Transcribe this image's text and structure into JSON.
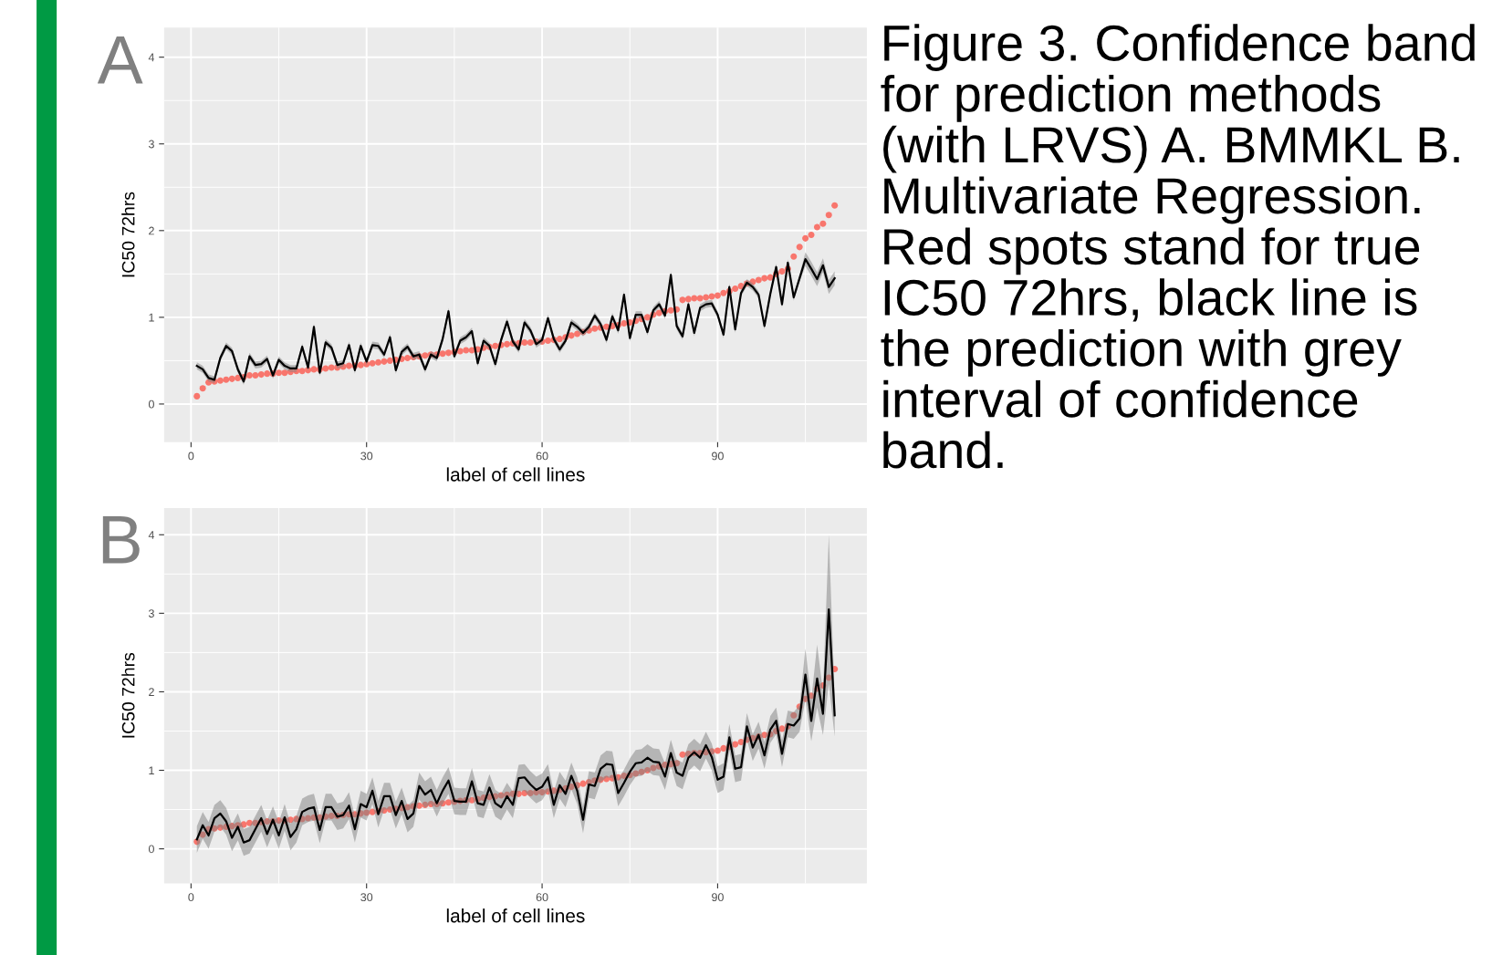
{
  "chart_data": [
    {
      "type": "line",
      "xlabel": "label of cell lines",
      "ylabel": "IC50 72hrs",
      "annotations": [
        "A",
        "Figure 3. Confidence band for prediction methods (with LRVS) A. BMMKL B. Multivariate Regression. Red spots stand for true IC50 72hrs, black line is the prediction with grey interval of confidence band."
      ],
      "xlim": [
        -4.6,
        115.5
      ],
      "ylim": [
        -0.44,
        4.34
      ],
      "xticks": [
        0,
        30,
        60,
        90
      ],
      "yticks": [
        0,
        1,
        2,
        3,
        4
      ],
      "grid": true,
      "x": [
        1,
        2,
        3,
        4,
        5,
        6,
        7,
        8,
        9,
        10,
        11,
        12,
        13,
        14,
        15,
        16,
        17,
        18,
        19,
        20,
        21,
        22,
        23,
        24,
        25,
        26,
        27,
        28,
        29,
        30,
        31,
        32,
        33,
        34,
        35,
        36,
        37,
        38,
        39,
        40,
        41,
        42,
        43,
        44,
        45,
        46,
        47,
        48,
        49,
        50,
        51,
        52,
        53,
        54,
        55,
        56,
        57,
        58,
        59,
        60,
        61,
        62,
        63,
        64,
        65,
        66,
        67,
        68,
        69,
        70,
        71,
        72,
        73,
        74,
        75,
        76,
        77,
        78,
        79,
        80,
        81,
        82,
        83,
        84,
        85,
        86,
        87,
        88,
        89,
        90,
        91,
        92,
        93,
        94,
        95,
        96,
        97,
        98,
        99,
        100,
        101,
        102,
        103,
        104,
        105,
        106,
        107,
        108,
        109,
        110
      ],
      "series": [
        {
          "type": "scatter",
          "marker": "circle",
          "color": "#f8766d",
          "values": [
            0.09,
            0.18,
            0.25,
            0.26,
            0.27,
            0.28,
            0.29,
            0.3,
            0.31,
            0.33,
            0.33,
            0.34,
            0.35,
            0.35,
            0.36,
            0.36,
            0.37,
            0.38,
            0.38,
            0.39,
            0.4,
            0.4,
            0.41,
            0.42,
            0.42,
            0.43,
            0.44,
            0.44,
            0.45,
            0.46,
            0.47,
            0.48,
            0.49,
            0.5,
            0.51,
            0.52,
            0.53,
            0.54,
            0.55,
            0.56,
            0.57,
            0.57,
            0.58,
            0.59,
            0.6,
            0.61,
            0.62,
            0.62,
            0.63,
            0.65,
            0.66,
            0.67,
            0.68,
            0.69,
            0.7,
            0.7,
            0.71,
            0.71,
            0.72,
            0.72,
            0.73,
            0.74,
            0.75,
            0.77,
            0.79,
            0.81,
            0.83,
            0.85,
            0.87,
            0.88,
            0.89,
            0.9,
            0.91,
            0.93,
            0.94,
            0.96,
            0.98,
            1.0,
            1.03,
            1.05,
            1.07,
            1.08,
            1.09,
            1.2,
            1.21,
            1.22,
            1.22,
            1.23,
            1.24,
            1.25,
            1.28,
            1.3,
            1.33,
            1.36,
            1.39,
            1.41,
            1.43,
            1.45,
            1.46,
            1.5,
            1.53,
            1.56,
            1.7,
            1.81,
            1.91,
            1.95,
            2.04,
            2.08,
            2.18,
            2.29
          ]
        },
        {
          "color": "#000000",
          "line_style": "solid",
          "values": [
            0.44,
            0.4,
            0.3,
            0.28,
            0.53,
            0.67,
            0.61,
            0.4,
            0.26,
            0.55,
            0.45,
            0.46,
            0.52,
            0.33,
            0.51,
            0.44,
            0.41,
            0.41,
            0.66,
            0.42,
            0.89,
            0.36,
            0.71,
            0.65,
            0.45,
            0.47,
            0.68,
            0.39,
            0.67,
            0.49,
            0.68,
            0.67,
            0.57,
            0.77,
            0.39,
            0.6,
            0.66,
            0.55,
            0.57,
            0.4,
            0.57,
            0.53,
            0.75,
            1.07,
            0.55,
            0.73,
            0.77,
            0.84,
            0.47,
            0.73,
            0.67,
            0.46,
            0.74,
            0.95,
            0.72,
            0.63,
            0.94,
            0.85,
            0.69,
            0.74,
            0.99,
            0.75,
            0.63,
            0.73,
            0.94,
            0.89,
            0.82,
            0.89,
            1.02,
            0.92,
            0.74,
            1.01,
            0.85,
            1.26,
            0.76,
            1.03,
            1.03,
            0.83,
            1.08,
            1.15,
            1.02,
            1.49,
            0.9,
            0.78,
            1.15,
            0.82,
            1.11,
            1.15,
            1.16,
            1.03,
            0.8,
            1.35,
            0.86,
            1.28,
            1.4,
            1.35,
            1.26,
            0.9,
            1.27,
            1.58,
            1.15,
            1.63,
            1.23,
            1.45,
            1.67,
            1.56,
            1.44,
            1.6,
            1.35,
            1.45
          ],
          "lower": [
            0.4,
            0.36,
            0.26,
            0.24,
            0.49,
            0.63,
            0.57,
            0.36,
            0.22,
            0.51,
            0.41,
            0.42,
            0.48,
            0.29,
            0.47,
            0.4,
            0.37,
            0.37,
            0.62,
            0.38,
            0.85,
            0.32,
            0.67,
            0.61,
            0.41,
            0.43,
            0.64,
            0.35,
            0.63,
            0.45,
            0.64,
            0.63,
            0.53,
            0.73,
            0.35,
            0.56,
            0.62,
            0.51,
            0.53,
            0.36,
            0.53,
            0.49,
            0.71,
            1.03,
            0.51,
            0.69,
            0.73,
            0.8,
            0.43,
            0.69,
            0.63,
            0.42,
            0.7,
            0.91,
            0.68,
            0.59,
            0.9,
            0.81,
            0.65,
            0.7,
            0.95,
            0.71,
            0.59,
            0.69,
            0.9,
            0.85,
            0.78,
            0.85,
            0.98,
            0.88,
            0.7,
            0.97,
            0.81,
            1.22,
            0.72,
            0.99,
            0.99,
            0.79,
            1.04,
            1.11,
            0.98,
            1.45,
            0.86,
            0.74,
            1.11,
            0.78,
            1.07,
            1.11,
            1.12,
            0.99,
            0.76,
            1.31,
            0.82,
            1.24,
            1.36,
            1.31,
            1.22,
            0.86,
            1.23,
            1.54,
            1.11,
            1.59,
            1.19,
            1.41,
            1.59,
            1.48,
            1.36,
            1.52,
            1.27,
            1.37
          ],
          "upper": [
            0.48,
            0.44,
            0.34,
            0.32,
            0.57,
            0.71,
            0.65,
            0.44,
            0.3,
            0.59,
            0.49,
            0.5,
            0.56,
            0.37,
            0.55,
            0.48,
            0.45,
            0.45,
            0.7,
            0.46,
            0.93,
            0.4,
            0.75,
            0.69,
            0.49,
            0.51,
            0.72,
            0.43,
            0.71,
            0.53,
            0.72,
            0.71,
            0.61,
            0.81,
            0.43,
            0.64,
            0.7,
            0.59,
            0.61,
            0.44,
            0.61,
            0.57,
            0.79,
            1.11,
            0.59,
            0.77,
            0.81,
            0.88,
            0.51,
            0.77,
            0.71,
            0.5,
            0.78,
            0.99,
            0.76,
            0.67,
            0.98,
            0.89,
            0.73,
            0.78,
            1.03,
            0.79,
            0.67,
            0.77,
            0.98,
            0.93,
            0.86,
            0.93,
            1.06,
            0.96,
            0.78,
            1.05,
            0.89,
            1.3,
            0.8,
            1.07,
            1.07,
            0.87,
            1.12,
            1.19,
            1.06,
            1.53,
            0.94,
            0.82,
            1.19,
            0.86,
            1.15,
            1.19,
            1.2,
            1.07,
            0.84,
            1.39,
            0.9,
            1.32,
            1.44,
            1.39,
            1.3,
            0.94,
            1.31,
            1.62,
            1.19,
            1.67,
            1.27,
            1.49,
            1.75,
            1.64,
            1.52,
            1.68,
            1.43,
            1.53
          ]
        }
      ]
    },
    {
      "type": "line",
      "xlabel": "label of cell lines",
      "ylabel": "IC50 72hrs",
      "annotations": [
        "B"
      ],
      "xlim": [
        -4.6,
        115.5
      ],
      "ylim": [
        -0.44,
        4.34
      ],
      "xticks": [
        0,
        30,
        60,
        90
      ],
      "yticks": [
        0,
        1,
        2,
        3,
        4
      ],
      "grid": true,
      "x": [
        1,
        2,
        3,
        4,
        5,
        6,
        7,
        8,
        9,
        10,
        11,
        12,
        13,
        14,
        15,
        16,
        17,
        18,
        19,
        20,
        21,
        22,
        23,
        24,
        25,
        26,
        27,
        28,
        29,
        30,
        31,
        32,
        33,
        34,
        35,
        36,
        37,
        38,
        39,
        40,
        41,
        42,
        43,
        44,
        45,
        46,
        47,
        48,
        49,
        50,
        51,
        52,
        53,
        54,
        55,
        56,
        57,
        58,
        59,
        60,
        61,
        62,
        63,
        64,
        65,
        66,
        67,
        68,
        69,
        70,
        71,
        72,
        73,
        74,
        75,
        76,
        77,
        78,
        79,
        80,
        81,
        82,
        83,
        84,
        85,
        86,
        87,
        88,
        89,
        90,
        91,
        92,
        93,
        94,
        95,
        96,
        97,
        98,
        99,
        100,
        101,
        102,
        103,
        104,
        105,
        106,
        107,
        108,
        109,
        110
      ],
      "series": [
        {
          "type": "scatter",
          "marker": "circle",
          "color": "#f8766d",
          "values": [
            0.09,
            0.18,
            0.25,
            0.26,
            0.27,
            0.28,
            0.29,
            0.3,
            0.31,
            0.33,
            0.33,
            0.34,
            0.35,
            0.35,
            0.36,
            0.36,
            0.37,
            0.38,
            0.38,
            0.39,
            0.4,
            0.4,
            0.41,
            0.42,
            0.42,
            0.43,
            0.44,
            0.44,
            0.45,
            0.46,
            0.47,
            0.48,
            0.49,
            0.5,
            0.51,
            0.52,
            0.53,
            0.54,
            0.55,
            0.56,
            0.57,
            0.57,
            0.58,
            0.59,
            0.6,
            0.61,
            0.62,
            0.62,
            0.63,
            0.65,
            0.66,
            0.67,
            0.68,
            0.69,
            0.7,
            0.7,
            0.71,
            0.71,
            0.72,
            0.72,
            0.73,
            0.74,
            0.75,
            0.77,
            0.79,
            0.81,
            0.83,
            0.85,
            0.87,
            0.88,
            0.89,
            0.9,
            0.91,
            0.93,
            0.94,
            0.96,
            0.98,
            1.0,
            1.03,
            1.05,
            1.07,
            1.08,
            1.09,
            1.2,
            1.21,
            1.22,
            1.22,
            1.23,
            1.24,
            1.25,
            1.28,
            1.3,
            1.33,
            1.36,
            1.39,
            1.41,
            1.43,
            1.45,
            1.46,
            1.5,
            1.53,
            1.56,
            1.7,
            1.81,
            1.91,
            1.95,
            2.04,
            2.08,
            2.18,
            2.29
          ]
        },
        {
          "color": "#000000",
          "line_style": "solid",
          "values": [
            0.12,
            0.3,
            0.17,
            0.39,
            0.45,
            0.35,
            0.14,
            0.28,
            0.08,
            0.11,
            0.25,
            0.39,
            0.19,
            0.37,
            0.17,
            0.4,
            0.15,
            0.25,
            0.47,
            0.51,
            0.53,
            0.24,
            0.53,
            0.53,
            0.41,
            0.43,
            0.55,
            0.25,
            0.57,
            0.53,
            0.74,
            0.44,
            0.67,
            0.67,
            0.43,
            0.61,
            0.38,
            0.45,
            0.8,
            0.69,
            0.75,
            0.58,
            0.74,
            0.87,
            0.61,
            0.6,
            0.6,
            0.86,
            0.58,
            0.56,
            0.78,
            0.58,
            0.53,
            0.67,
            0.56,
            0.9,
            0.91,
            0.82,
            0.75,
            0.79,
            0.91,
            0.56,
            0.81,
            0.7,
            0.93,
            0.74,
            0.37,
            0.82,
            0.8,
            1.02,
            1.08,
            1.07,
            0.71,
            0.84,
            0.98,
            1.09,
            1.1,
            1.16,
            1.11,
            1.1,
            0.92,
            1.22,
            0.97,
            0.93,
            1.16,
            1.23,
            1.16,
            1.32,
            1.17,
            0.88,
            0.92,
            1.42,
            1.02,
            1.04,
            1.56,
            1.29,
            1.45,
            1.19,
            1.52,
            1.63,
            1.21,
            1.59,
            1.57,
            1.66,
            2.22,
            1.63,
            2.17,
            1.72,
            3.05,
            1.7
          ],
          "lower": [
            -0.05,
            0.13,
            0.0,
            0.22,
            0.28,
            0.18,
            -0.03,
            0.11,
            -0.09,
            -0.06,
            0.08,
            0.22,
            0.02,
            0.2,
            0.0,
            0.23,
            -0.02,
            0.08,
            0.3,
            0.34,
            0.36,
            0.07,
            0.36,
            0.36,
            0.24,
            0.26,
            0.38,
            0.08,
            0.4,
            0.36,
            0.57,
            0.27,
            0.5,
            0.5,
            0.26,
            0.44,
            0.21,
            0.28,
            0.63,
            0.52,
            0.58,
            0.41,
            0.57,
            0.7,
            0.44,
            0.43,
            0.43,
            0.69,
            0.41,
            0.39,
            0.61,
            0.41,
            0.36,
            0.5,
            0.39,
            0.73,
            0.74,
            0.65,
            0.58,
            0.62,
            0.74,
            0.39,
            0.64,
            0.53,
            0.76,
            0.57,
            0.2,
            0.65,
            0.63,
            0.85,
            0.91,
            0.9,
            0.54,
            0.67,
            0.81,
            0.92,
            0.93,
            0.99,
            0.94,
            0.93,
            0.75,
            1.05,
            0.8,
            0.76,
            0.99,
            1.06,
            0.99,
            1.15,
            1.0,
            0.71,
            0.75,
            1.25,
            0.85,
            0.87,
            1.39,
            1.12,
            1.28,
            1.02,
            1.35,
            1.46,
            1.04,
            1.42,
            1.4,
            1.49,
            1.9,
            1.37,
            1.8,
            1.45,
            2.1,
            1.43
          ],
          "upper": [
            0.29,
            0.47,
            0.34,
            0.56,
            0.62,
            0.52,
            0.31,
            0.45,
            0.25,
            0.28,
            0.42,
            0.56,
            0.36,
            0.54,
            0.34,
            0.57,
            0.32,
            0.42,
            0.64,
            0.68,
            0.7,
            0.41,
            0.7,
            0.7,
            0.58,
            0.6,
            0.72,
            0.42,
            0.74,
            0.7,
            0.91,
            0.61,
            0.84,
            0.84,
            0.6,
            0.78,
            0.55,
            0.62,
            0.97,
            0.86,
            0.92,
            0.75,
            0.91,
            1.04,
            0.78,
            0.77,
            0.77,
            1.03,
            0.75,
            0.73,
            0.95,
            0.75,
            0.7,
            0.84,
            0.73,
            1.07,
            1.08,
            0.99,
            0.92,
            0.96,
            1.08,
            0.73,
            0.98,
            0.87,
            1.1,
            0.91,
            0.54,
            0.99,
            0.97,
            1.19,
            1.25,
            1.24,
            0.88,
            1.01,
            1.15,
            1.26,
            1.27,
            1.33,
            1.28,
            1.27,
            1.09,
            1.39,
            1.14,
            1.1,
            1.33,
            1.4,
            1.33,
            1.49,
            1.34,
            1.05,
            1.09,
            1.59,
            1.19,
            1.21,
            1.73,
            1.46,
            1.62,
            1.36,
            1.69,
            1.8,
            1.38,
            1.76,
            1.74,
            1.83,
            2.55,
            1.9,
            2.6,
            2.0,
            4.0,
            1.95
          ]
        }
      ]
    }
  ]
}
